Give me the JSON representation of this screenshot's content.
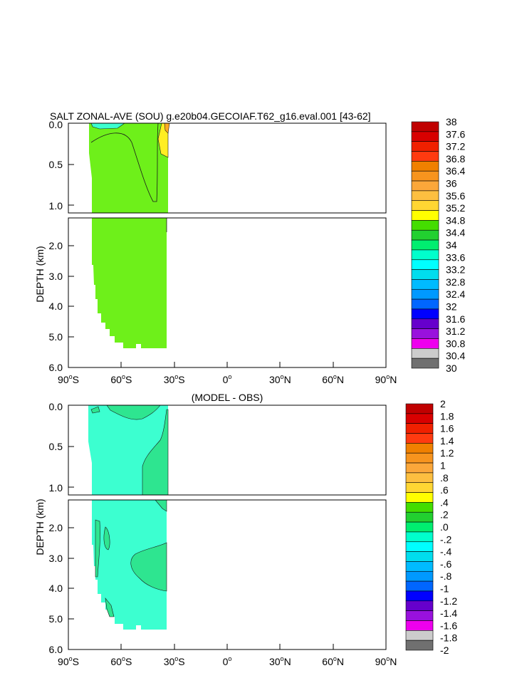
{
  "chart_data": [
    {
      "type": "heatmap",
      "title": "SALT ZONAL-AVE (SOU) g.e20b04.GECOIAF.T62_g16.eval.001 [43-62]",
      "ylabel": "DEPTH (km)",
      "x_ticks": [
        {
          "base": "90",
          "deg": "o",
          "hemi": "S"
        },
        {
          "base": "60",
          "deg": "o",
          "hemi": "S"
        },
        {
          "base": "30",
          "deg": "o",
          "hemi": "S"
        },
        {
          "base": "0",
          "deg": "o",
          "hemi": ""
        },
        {
          "base": "30",
          "deg": "o",
          "hemi": "N"
        },
        {
          "base": "60",
          "deg": "o",
          "hemi": "N"
        },
        {
          "base": "90",
          "deg": "o",
          "hemi": "N"
        }
      ],
      "xlim": [
        -90,
        90
      ],
      "y_ticks_upper": [
        "0.0",
        "0.5",
        "1.0"
      ],
      "y_ticks_lower": [
        "2.0",
        "3.0",
        "4.0",
        "5.0",
        "6.0"
      ],
      "upper_ylim_km": [
        0,
        1.1
      ],
      "lower_ylim_km": [
        1.1,
        6.0
      ],
      "data_extent_lat": [
        -77,
        -34
      ],
      "colorbar_labels": [
        "38",
        "37.6",
        "37.2",
        "36.8",
        "36.4",
        "36",
        "35.6",
        "35.2",
        "34.8",
        "34.4",
        "34",
        "33.6",
        "33.2",
        "32.8",
        "32.4",
        "32",
        "31.6",
        "31.2",
        "30.8",
        "30.4",
        "30"
      ]
    },
    {
      "type": "heatmap",
      "title": "(MODEL - OBS)",
      "ylabel": "DEPTH (km)",
      "x_ticks": [
        {
          "base": "90",
          "deg": "o",
          "hemi": "S"
        },
        {
          "base": "60",
          "deg": "o",
          "hemi": "S"
        },
        {
          "base": "30",
          "deg": "o",
          "hemi": "S"
        },
        {
          "base": "0",
          "deg": "o",
          "hemi": ""
        },
        {
          "base": "30",
          "deg": "o",
          "hemi": "N"
        },
        {
          "base": "60",
          "deg": "o",
          "hemi": "N"
        },
        {
          "base": "90",
          "deg": "o",
          "hemi": "N"
        }
      ],
      "xlim": [
        -90,
        90
      ],
      "y_ticks_upper": [
        "0.0",
        "0.5",
        "1.0"
      ],
      "y_ticks_lower": [
        "2.0",
        "3.0",
        "4.0",
        "5.0",
        "6.0"
      ],
      "upper_ylim_km": [
        0,
        1.1
      ],
      "lower_ylim_km": [
        1.1,
        6.0
      ],
      "data_extent_lat": [
        -77,
        -34
      ],
      "colorbar_labels": [
        "2",
        "1.8",
        "1.6",
        "1.4",
        "1.2",
        "1",
        ".8",
        ".6",
        ".4",
        ".2",
        ".0",
        "-.2",
        "-.4",
        "-.6",
        "-.8",
        "-1",
        "-1.2",
        "-1.4",
        "-1.6",
        "-1.8",
        "-2"
      ]
    }
  ],
  "colorbar_colors": [
    "#c00000",
    "#d80000",
    "#f02000",
    "#ff3a10",
    "#f08000",
    "#f7941e",
    "#fba73a",
    "#fdbf40",
    "#ffd633",
    "#ffff00",
    "#44dd00",
    "#22d030",
    "#00ee70",
    "#00ffcc",
    "#00ffff",
    "#00ddee",
    "#00bbff",
    "#0099ff",
    "#0066ff",
    "#0000ff",
    "#6600cc",
    "#9911dd",
    "#ee00ee",
    "#cccccc",
    "#707070"
  ],
  "colors": {
    "green": "#6ef01a",
    "green_dark": "#2fe05a",
    "yellow": "#ffee22",
    "orange": "#ffaa22",
    "cyan": "#3cffd0",
    "teal": "#2ee590",
    "border": "#000000"
  }
}
